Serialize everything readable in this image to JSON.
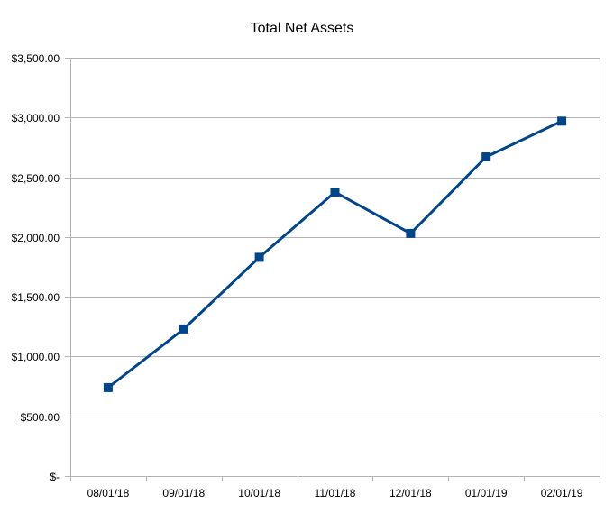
{
  "chart_data": {
    "type": "line",
    "title": "Total Net Assets",
    "xlabel": "",
    "ylabel": "",
    "categories": [
      "08/01/18",
      "09/01/18",
      "10/01/18",
      "11/01/18",
      "12/01/18",
      "01/01/19",
      "02/01/19"
    ],
    "series": [
      {
        "values": [
          740,
          1230,
          1830,
          2375,
          2030,
          2670,
          2970
        ]
      }
    ],
    "ylim": [
      0,
      3500
    ],
    "y_tick_values": [
      0,
      500,
      1000,
      1500,
      2000,
      2500,
      3000,
      3500
    ],
    "y_tick_labels": [
      "$-",
      "$500.00",
      "$1,000.00",
      "$1,500.00",
      "$2,000.00",
      "$2,500.00",
      "$3,000.00",
      "$3,500.00"
    ],
    "grid": "horizontal",
    "legend": "none",
    "line_color": "#004586",
    "marker": "square"
  }
}
